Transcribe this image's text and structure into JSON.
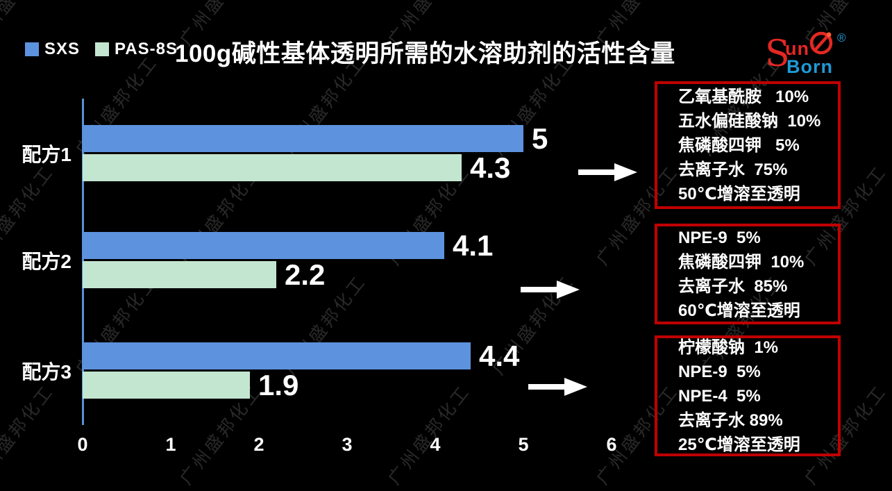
{
  "page": {
    "background": "#000000"
  },
  "watermark": {
    "text": "广州盛邦化工"
  },
  "legend": {
    "items": [
      {
        "label": "SXS",
        "color": "#5d92de"
      },
      {
        "label": "PAS-8S",
        "color": "#c3e6d1"
      }
    ]
  },
  "title": "100g碱性基体透明所需的水溶助剂的活性含量",
  "logo": {
    "text_s": "S",
    "text_top": "un",
    "text_bottom": "Born",
    "registered": "®",
    "red": "#e42823",
    "blue": "#1f9ad6"
  },
  "chart_data": {
    "type": "bar",
    "orientation": "horizontal",
    "title": "100g碱性基体透明所需的水溶助剂的活性含量",
    "categories": [
      "配方1",
      "配方2",
      "配方3"
    ],
    "series": [
      {
        "name": "SXS",
        "color": "#5d92de",
        "values": [
          5,
          4.1,
          4.4
        ]
      },
      {
        "name": "PAS-8S",
        "color": "#c3e6d1",
        "values": [
          4.3,
          2.2,
          1.9
        ]
      }
    ],
    "value_labels": [
      [
        "5",
        "4.3"
      ],
      [
        "4.1",
        "2.2"
      ],
      [
        "4.4",
        "1.9"
      ]
    ],
    "xlabel": "",
    "ylabel": "",
    "xlim": [
      0,
      6
    ],
    "x_ticks": [
      "0",
      "1",
      "2",
      "3",
      "4",
      "5",
      "6"
    ],
    "grid": false,
    "legend_position": "top-left",
    "background": "#000000",
    "axis_color": "#5b8fd9"
  },
  "annotations": {
    "border_color": "#c00000",
    "arrow_color": "#ffffff",
    "boxes": [
      {
        "lines": [
          "乙氧基酰胺   10%",
          "五水偏硅酸钠  10%",
          "焦磷酸四钾   5%",
          "去离子水  75%",
          "50℃增溶至透明"
        ]
      },
      {
        "lines": [
          "NPE-9  5%",
          "焦磷酸四钾  10%",
          "去离子水  85%",
          "60℃增溶至透明"
        ]
      },
      {
        "lines": [
          "柠檬酸钠  1%",
          "NPE-9  5%",
          "NPE-4  5%",
          "去离子水 89%",
          "25℃增溶至透明"
        ]
      }
    ]
  }
}
